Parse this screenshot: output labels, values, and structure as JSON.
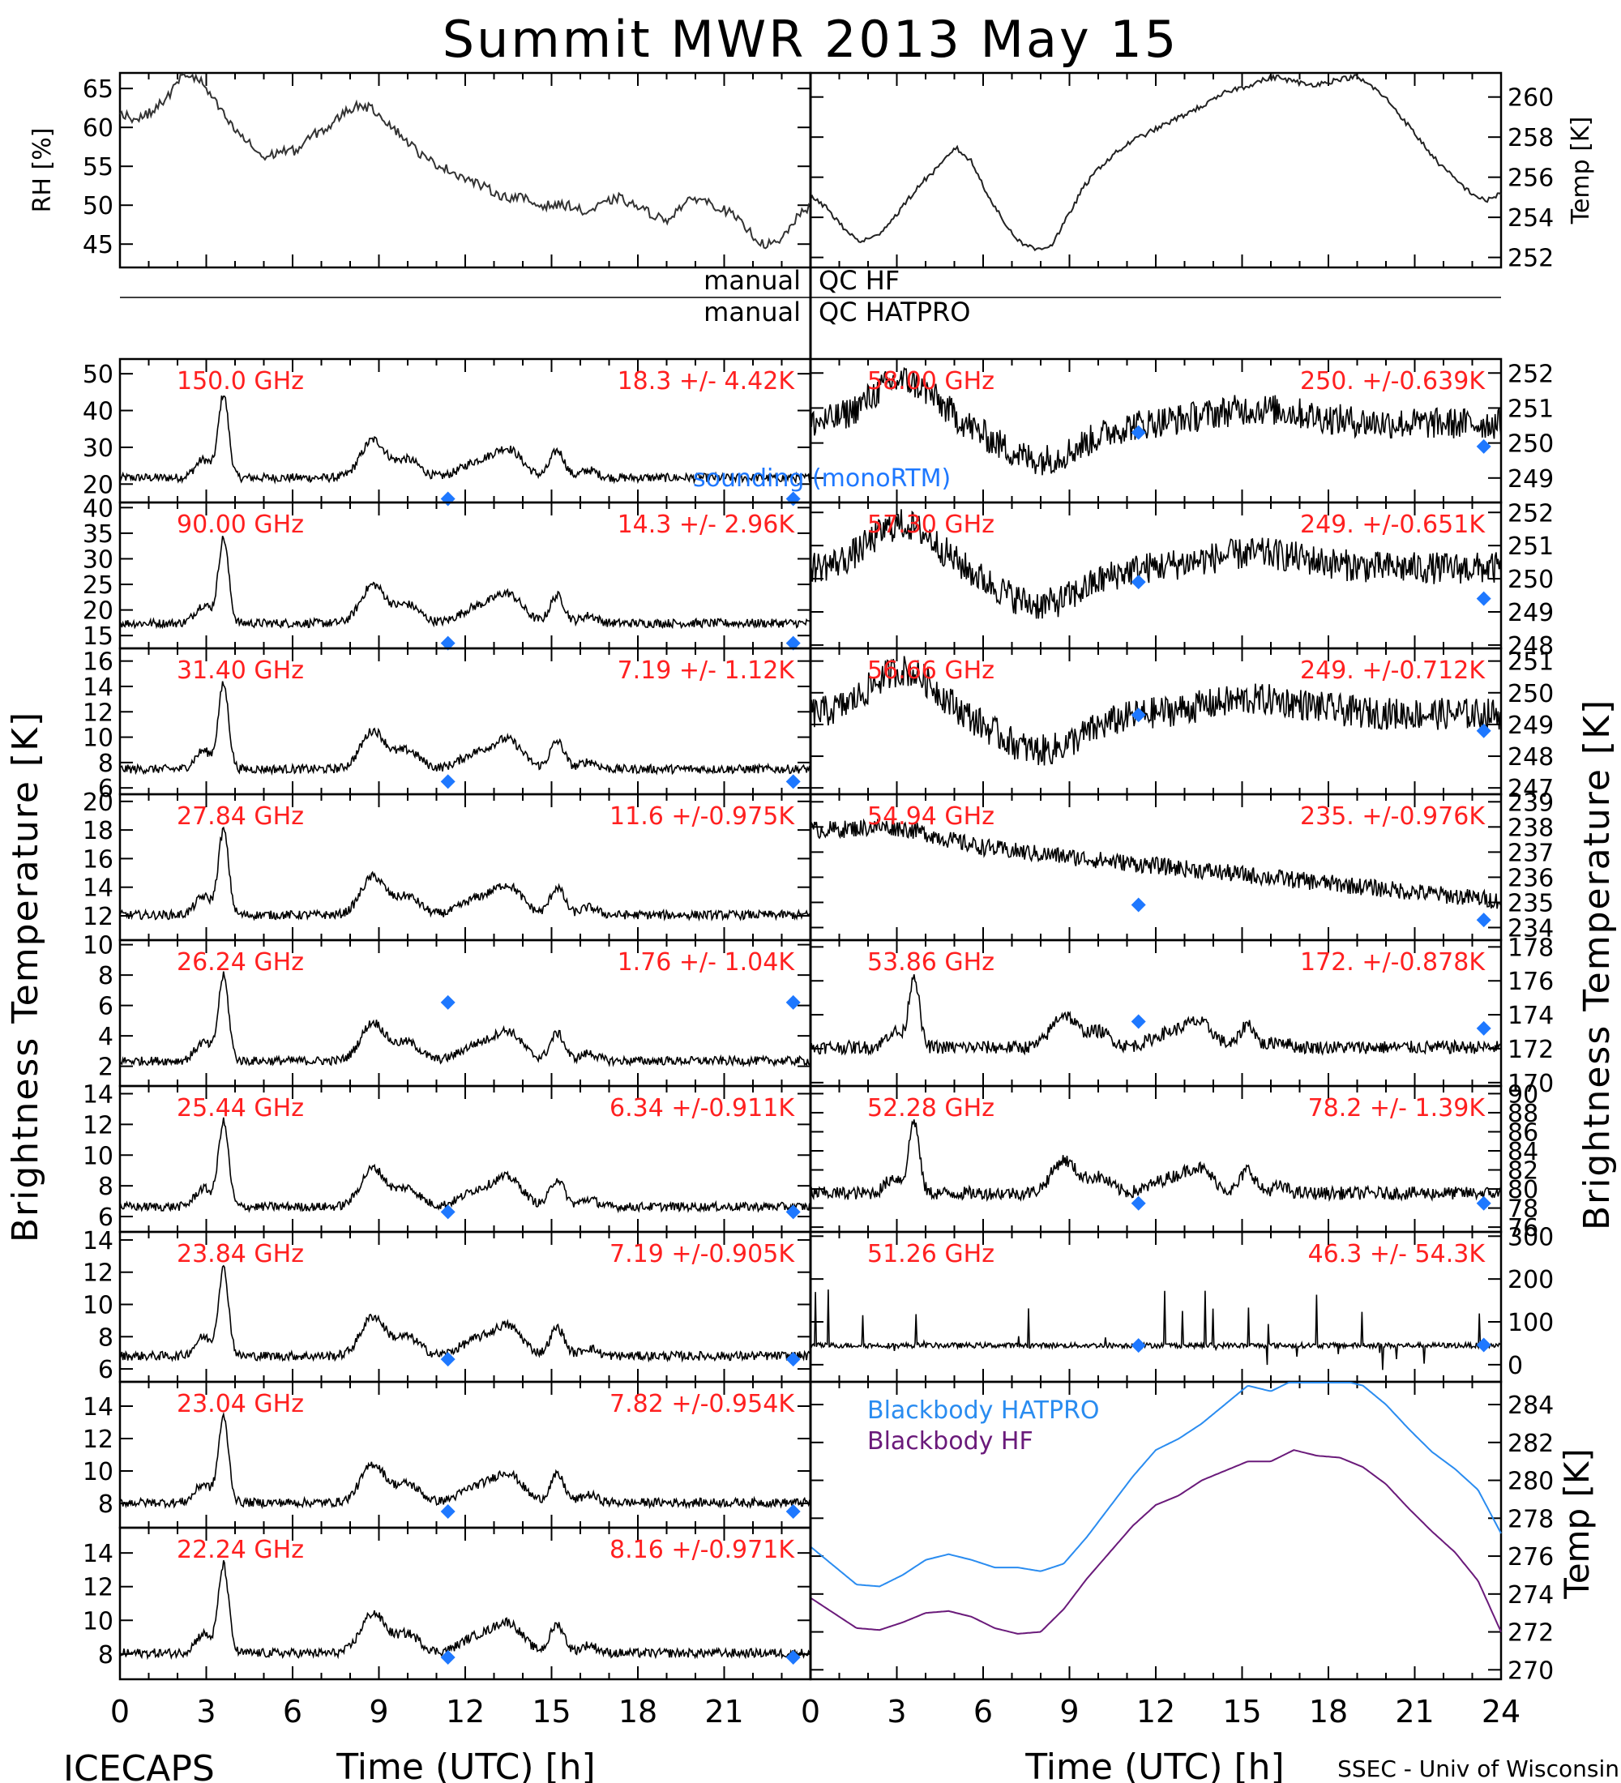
{
  "title": "Summit MWR 2013 May 15",
  "footer": {
    "left": "ICECAPS",
    "right": "SSEC - Univ of Wisconsin"
  },
  "x_axis": {
    "label": "Time (UTC) [h]",
    "ticks": [
      "0",
      "3",
      "6",
      "9",
      "12",
      "15",
      "18",
      "21",
      "24"
    ],
    "ticks_left": [
      "0",
      "3",
      "6",
      "9",
      "12",
      "15",
      "18",
      "21"
    ]
  },
  "y_axis_left": "Brightness Temperature [K]",
  "y_axis_right": "Brightness Temperature [K]",
  "qc": {
    "top_left": "manual",
    "top_right": "QC HF",
    "bot_left": "manual",
    "bot_right": "QC HATPRO"
  },
  "legend": {
    "sounding": "sounding (monoRTM)",
    "bb_hatpro": "Blackbody HATPRO",
    "bb_hf": "Blackbody HF"
  },
  "colors": {
    "label_red": "#ff2020",
    "sounding_blue": "#1e78ff",
    "hatpro_blue": "#2a8cf0",
    "hf_purple": "#6a1a7a"
  },
  "chart_data": [
    {
      "type": "line",
      "panel": "RH",
      "ylabel": "RH [%]",
      "yticks": [
        "45",
        "50",
        "55",
        "60",
        "65"
      ],
      "ylim": [
        42,
        67
      ],
      "series": [
        {
          "values": [
            62,
            61,
            62,
            64,
            67,
            66,
            63,
            60,
            58,
            56,
            57,
            57,
            59,
            60,
            62,
            63,
            62,
            60,
            58,
            56,
            55,
            54,
            53,
            52,
            51,
            51,
            50,
            50,
            50,
            49,
            50,
            51,
            50,
            49,
            48,
            50,
            51,
            50,
            49,
            47,
            45,
            45,
            48,
            50
          ]
        }
      ]
    },
    {
      "type": "line",
      "panel": "Temp",
      "ylabel": "Temp [K]",
      "yticks": [
        "252",
        "254",
        "256",
        "258",
        "260"
      ],
      "ylim": [
        251.5,
        261.2
      ],
      "series": [
        {
          "values": [
            255,
            254.5,
            253.5,
            252.8,
            253,
            253.8,
            254.8,
            255.8,
            256.5,
            257.5,
            256.8,
            255.2,
            253.8,
            252.8,
            252.4,
            252.6,
            254,
            255.5,
            256.5,
            257.2,
            257.8,
            258.2,
            258.6,
            259,
            259.4,
            259.8,
            260.3,
            260.5,
            260.8,
            261,
            260.8,
            260.6,
            260.7,
            260.9,
            261,
            260.5,
            259.8,
            258.8,
            257.8,
            256.8,
            256,
            255.3,
            254.8,
            255.2
          ]
        }
      ]
    },
    {
      "type": "line",
      "panel": "150.0 GHz",
      "label": "150.0 GHz",
      "stat": "18.3 +/-  4.42K",
      "yticks": [
        "20",
        "30",
        "40",
        "50"
      ],
      "ylim": [
        15,
        54
      ],
      "sounding": [
        [
          11.4,
          16
        ],
        [
          23.4,
          16
        ]
      ]
    },
    {
      "type": "line",
      "panel": "90.00 GHz",
      "label": "90.00 GHz",
      "stat": "14.3 +/-  2.96K",
      "yticks": [
        "15",
        "20",
        "25",
        "30",
        "35",
        "40"
      ],
      "ylim": [
        12.5,
        41
      ],
      "sounding": [
        [
          11.4,
          13.5
        ],
        [
          23.4,
          13.5
        ]
      ]
    },
    {
      "type": "line",
      "panel": "31.40 GHz",
      "label": "31.40 GHz",
      "stat": "7.19 +/- 1.12K",
      "yticks": [
        "6",
        "8",
        "10",
        "12",
        "14",
        "16"
      ],
      "ylim": [
        5.5,
        17
      ],
      "sounding": [
        [
          11.4,
          6.5
        ],
        [
          23.4,
          6.5
        ]
      ]
    },
    {
      "type": "line",
      "panel": "27.84 GHz",
      "label": "27.84 GHz",
      "stat": "11.6 +/-0.975K",
      "yticks": [
        "12",
        "14",
        "16",
        "18",
        "20"
      ],
      "ylim": [
        10.3,
        20.5
      ],
      "sounding": []
    },
    {
      "type": "line",
      "panel": "26.24 GHz",
      "label": "26.24 GHz",
      "stat": "1.76 +/- 1.04K",
      "yticks": [
        "2",
        "4",
        "6",
        "8",
        "10"
      ],
      "ylim": [
        0.7,
        10.3
      ],
      "sounding": [
        [
          11.4,
          6.2
        ],
        [
          23.4,
          6.2
        ]
      ]
    },
    {
      "type": "line",
      "panel": "25.44 GHz",
      "label": "25.44 GHz",
      "stat": "6.34 +/-0.911K",
      "yticks": [
        "6",
        "8",
        "10",
        "12",
        "14"
      ],
      "ylim": [
        5,
        14.5
      ],
      "sounding": [
        [
          11.4,
          6.3
        ],
        [
          23.4,
          6.3
        ]
      ]
    },
    {
      "type": "line",
      "panel": "23.84 GHz",
      "label": "23.84 GHz",
      "stat": "7.19 +/-0.905K",
      "yticks": [
        "6",
        "8",
        "10",
        "12",
        "14"
      ],
      "ylim": [
        5.2,
        14.5
      ],
      "sounding": [
        [
          11.4,
          6.6
        ],
        [
          23.4,
          6.6
        ]
      ]
    },
    {
      "type": "line",
      "panel": "23.04 GHz",
      "label": "23.04 GHz",
      "stat": "7.82 +/-0.954K",
      "yticks": [
        "8",
        "10",
        "12",
        "14"
      ],
      "ylim": [
        6.5,
        15.5
      ],
      "sounding": [
        [
          11.4,
          7.5
        ],
        [
          23.4,
          7.5
        ]
      ]
    },
    {
      "type": "line",
      "panel": "22.24 GHz",
      "label": "22.24 GHz",
      "stat": "8.16 +/-0.971K",
      "yticks": [
        "8",
        "10",
        "12",
        "14"
      ],
      "ylim": [
        6.5,
        15.5
      ],
      "sounding": [
        [
          11.4,
          7.8
        ],
        [
          23.4,
          7.8
        ]
      ]
    },
    {
      "type": "line",
      "panel": "58.00 GHz",
      "label": "58.00 GHz",
      "stat": "250. +/-0.639K",
      "yticks": [
        "249",
        "250",
        "251",
        "252"
      ],
      "ylim": [
        248.3,
        252.4
      ],
      "sounding": [
        [
          11.4,
          250.3
        ],
        [
          23.4,
          249.9
        ]
      ]
    },
    {
      "type": "line",
      "panel": "57.30 GHz",
      "label": "57.30 GHz",
      "stat": "249. +/-0.651K",
      "yticks": [
        "248",
        "249",
        "250",
        "251",
        "252"
      ],
      "ylim": [
        247.9,
        252.3
      ],
      "sounding": [
        [
          11.4,
          249.9
        ],
        [
          23.4,
          249.4
        ]
      ]
    },
    {
      "type": "line",
      "panel": "56.66 GHz",
      "label": "56.66 GHz",
      "stat": "249. +/-0.712K",
      "yticks": [
        "247",
        "248",
        "249",
        "250",
        "251"
      ],
      "ylim": [
        246.8,
        251.4
      ],
      "sounding": [
        [
          11.4,
          249.3
        ],
        [
          23.4,
          248.8
        ]
      ]
    },
    {
      "type": "line",
      "panel": "54.94 GHz",
      "label": "54.94 GHz",
      "stat": "235. +/-0.976K",
      "yticks": [
        "234",
        "235",
        "236",
        "237",
        "238",
        "239"
      ],
      "ylim": [
        233.5,
        239.3
      ],
      "sounding": [
        [
          11.4,
          234.9
        ],
        [
          23.4,
          234.3
        ]
      ]
    },
    {
      "type": "line",
      "panel": "53.86 GHz",
      "label": "53.86 GHz",
      "stat": "172. +/-0.878K",
      "yticks": [
        "170",
        "172",
        "174",
        "176",
        "178"
      ],
      "ylim": [
        169.8,
        178.4
      ],
      "sounding": [
        [
          11.4,
          173.6
        ],
        [
          23.4,
          173.2
        ]
      ]
    },
    {
      "type": "line",
      "panel": "52.28 GHz",
      "label": "52.28 GHz",
      "stat": "78.2 +/- 1.39K",
      "yticks": [
        "76",
        "78",
        "80",
        "82",
        "84",
        "86",
        "88",
        "90"
      ],
      "ylim": [
        75.5,
        90.8
      ],
      "sounding": [
        [
          11.4,
          78.5
        ],
        [
          23.4,
          78.5
        ]
      ]
    },
    {
      "type": "line",
      "panel": "51.26 GHz",
      "label": "51.26 GHz",
      "stat": "46.3 +/- 54.3K",
      "yticks": [
        "0",
        "100",
        "200",
        "300"
      ],
      "ylim": [
        -40,
        310
      ],
      "sounding": [
        [
          11.4,
          45
        ],
        [
          23.4,
          46
        ]
      ]
    },
    {
      "type": "line",
      "panel": "Blackbody",
      "ylabel": "Temp [K]",
      "yticks": [
        "270",
        "272",
        "274",
        "276",
        "278",
        "280",
        "282",
        "284"
      ],
      "ylim": [
        269.5,
        285.2
      ],
      "series": [
        {
          "name": "Blackbody HATPRO",
          "values": [
            276.5,
            275.5,
            274.5,
            274.4,
            275,
            275.8,
            276.1,
            275.8,
            275.4,
            275.4,
            275.2,
            275.6,
            277,
            278.6,
            280.2,
            281.6,
            282.2,
            283,
            284,
            285,
            284.7,
            285.3,
            285.3,
            285.3,
            285,
            284,
            282.7,
            281.5,
            280.6,
            279.5,
            277.2
          ]
        },
        {
          "name": "Blackbody HF",
          "values": [
            273.8,
            273,
            272.2,
            272.1,
            272.5,
            273,
            273.1,
            272.8,
            272.2,
            271.9,
            272,
            273.2,
            274.8,
            276.2,
            277.6,
            278.7,
            279.2,
            280,
            280.5,
            281,
            281,
            281.6,
            281.3,
            281.2,
            280.7,
            279.8,
            278.5,
            277.3,
            276.2,
            274.7,
            272
          ]
        }
      ]
    }
  ]
}
